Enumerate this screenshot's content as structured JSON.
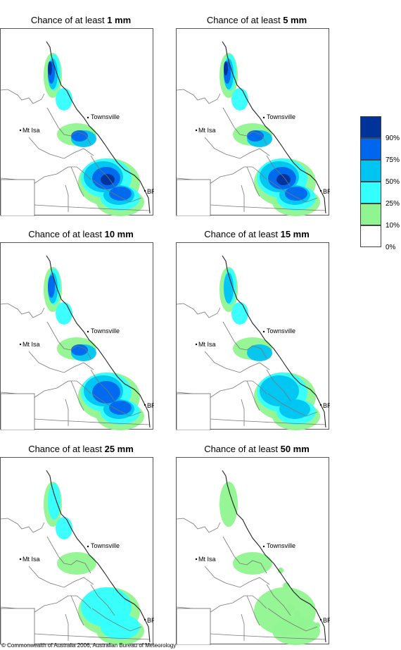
{
  "panels": [
    {
      "id": "p1",
      "prefix": "Chance of at least ",
      "amount": "1 mm",
      "level": 5
    },
    {
      "id": "p2",
      "prefix": "Chance of at least ",
      "amount": "5 mm",
      "level": 4
    },
    {
      "id": "p3",
      "prefix": "Chance of at least ",
      "amount": "10 mm",
      "level": 3
    },
    {
      "id": "p4",
      "prefix": "Chance of at least ",
      "amount": "15 mm",
      "level": 2
    },
    {
      "id": "p5",
      "prefix": "Chance of at least ",
      "amount": "25 mm",
      "level": 1
    },
    {
      "id": "p6",
      "prefix": "Chance of at least ",
      "amount": "50 mm",
      "level": 0
    }
  ],
  "labels": {
    "townsville": "Townsville",
    "mtisa": "Mt Isa",
    "bris": "BRIS"
  },
  "legend": {
    "colors": [
      "#00339a",
      "#0066ee",
      "#00c4f2",
      "#33ffff",
      "#90f590",
      "#ffffff"
    ],
    "ticks": [
      "90%",
      "75%",
      "50%",
      "25%",
      "10%",
      "0%"
    ]
  },
  "copyright": "© Commonwealth of Australia 2006, Australian Bureau of Meteorology"
}
